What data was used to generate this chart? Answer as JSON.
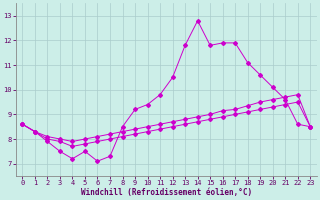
{
  "background_color": "#cceee8",
  "grid_color": "#aacccc",
  "line_color": "#cc00cc",
  "xlim": [
    -0.5,
    23.5
  ],
  "ylim": [
    6.5,
    13.5
  ],
  "xticks": [
    0,
    1,
    2,
    3,
    4,
    5,
    6,
    7,
    8,
    9,
    10,
    11,
    12,
    13,
    14,
    15,
    16,
    17,
    18,
    19,
    20,
    21,
    22,
    23
  ],
  "yticks": [
    7,
    8,
    9,
    10,
    11,
    12,
    13
  ],
  "line1_y": [
    8.6,
    8.3,
    7.9,
    7.5,
    7.2,
    7.5,
    7.1,
    7.3,
    8.5,
    9.2,
    9.4,
    9.8,
    10.5,
    11.8,
    12.8,
    11.8,
    11.9,
    11.9,
    11.1,
    10.6,
    10.1,
    9.6,
    8.6,
    8.5
  ],
  "line2_y": [
    8.6,
    8.3,
    8.1,
    8.0,
    7.9,
    8.0,
    8.1,
    8.2,
    8.3,
    8.4,
    8.5,
    8.6,
    8.7,
    8.8,
    8.9,
    9.0,
    9.15,
    9.2,
    9.35,
    9.5,
    9.6,
    9.7,
    9.8,
    8.5
  ],
  "line3_y": [
    8.6,
    8.3,
    8.0,
    7.9,
    7.7,
    7.8,
    7.9,
    8.0,
    8.1,
    8.2,
    8.3,
    8.4,
    8.5,
    8.6,
    8.7,
    8.8,
    8.9,
    9.0,
    9.1,
    9.2,
    9.3,
    9.4,
    9.5,
    8.5
  ],
  "xlabel": "Windchill (Refroidissement éolien,°C)",
  "xlabel_fontsize": 5.5,
  "tick_labelsize": 5,
  "marker_size": 2.0
}
